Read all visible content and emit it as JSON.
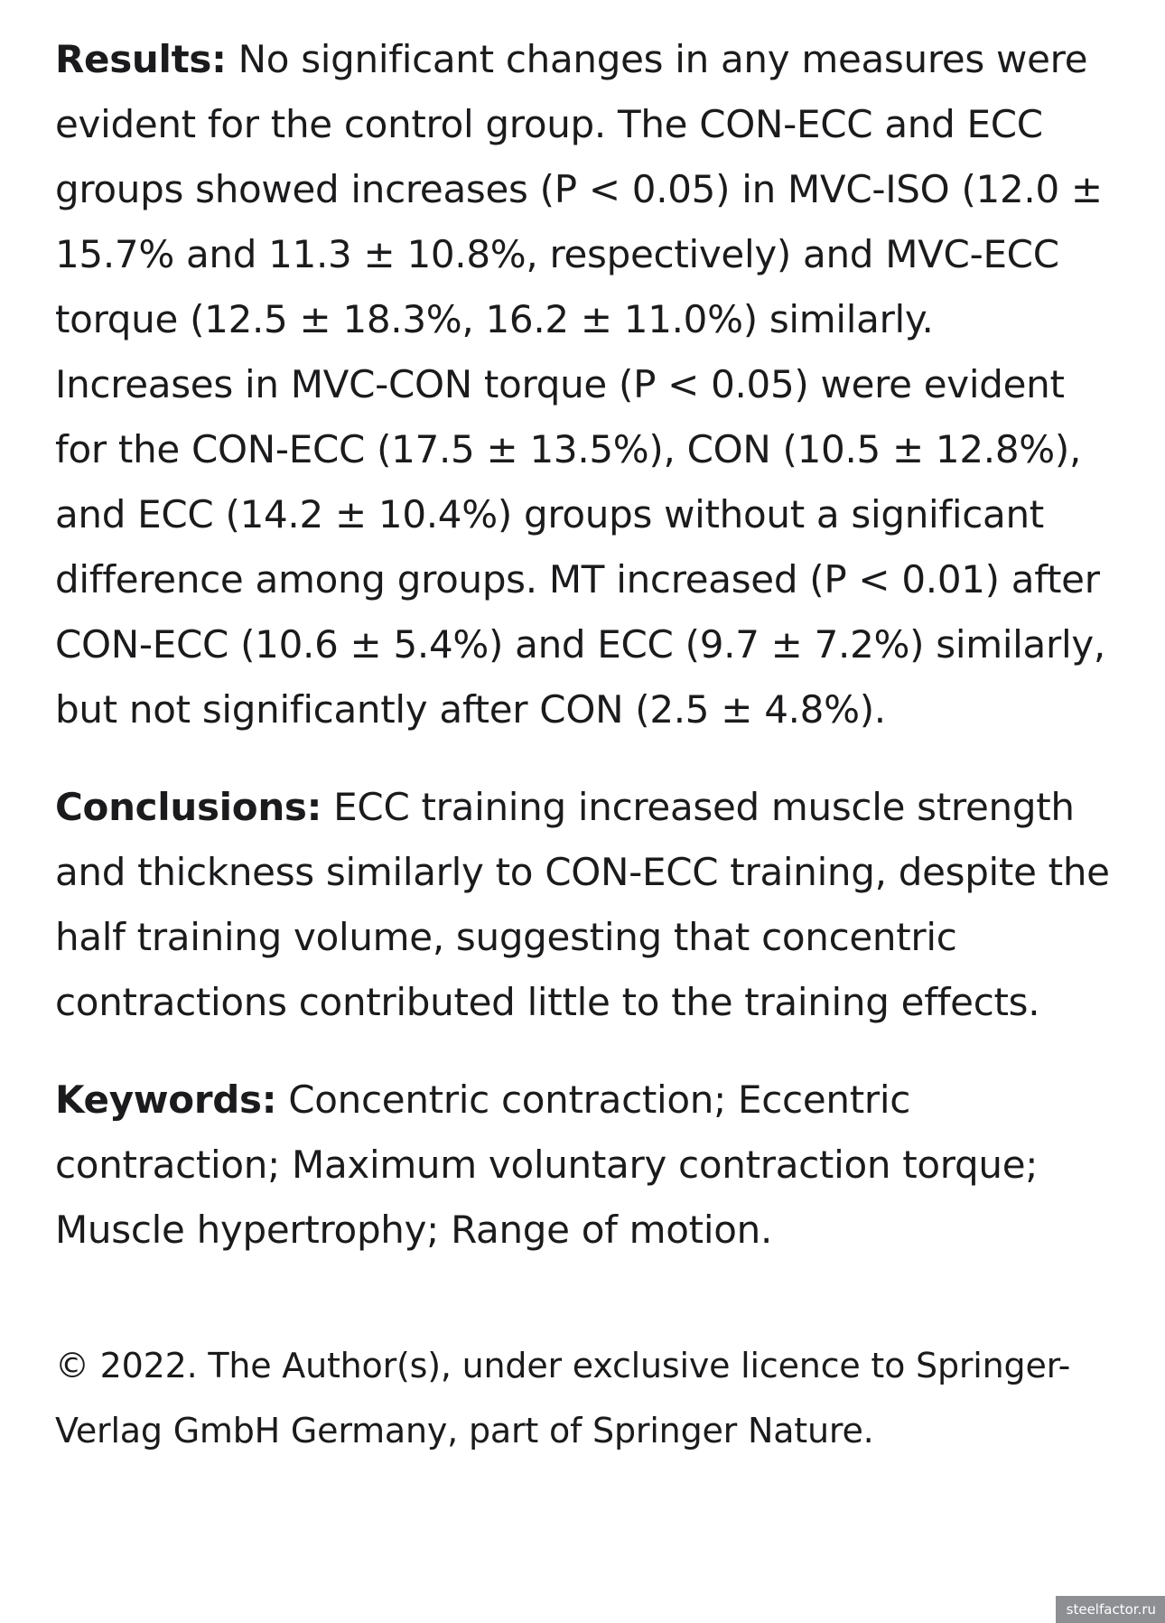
{
  "abstract": {
    "results": {
      "label": "Results:",
      "text": " No significant changes in any measures were evident for the control group. The CON-ECC and ECC groups showed increases (P < 0.05) in MVC-ISO (12.0 ± 15.7% and 11.3 ± 10.8%, respectively) and MVC-ECC torque (12.5 ± 18.3%, 16.2 ± 11.0%) similarly. Increases in MVC-CON torque (P < 0.05) were evident for the CON-ECC (17.5 ± 13.5%), CON (10.5 ± 12.8%), and ECC (14.2 ± 10.4%) groups without a significant difference among groups. MT increased (P < 0.01) after CON-ECC (10.6 ± 5.4%) and ECC (9.7 ± 7.2%) similarly, but not significantly after CON (2.5 ± 4.8%)."
    },
    "conclusions": {
      "label": "Conclusions:",
      "text": " ECC training increased muscle strength and thickness similarly to CON-ECC training, despite the half training volume, suggesting that concentric contractions contributed little to the training effects."
    },
    "keywords": {
      "label": "Keywords:",
      "text": " Concentric contraction; Eccentric contraction; Maximum voluntary contraction torque; Muscle hypertrophy; Range of motion."
    }
  },
  "copyright": "© 2022. The Author(s), under exclusive licence to Springer-Verlag GmbH Germany, part of Springer Nature.",
  "watermark": "steelfactor.ru"
}
